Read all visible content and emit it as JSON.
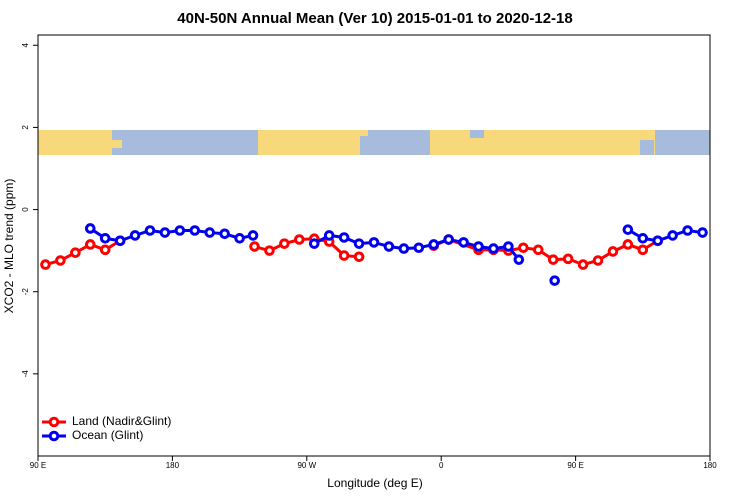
{
  "chart_data": {
    "type": "line",
    "title": "40N-50N Annual Mean (Ver 10)   2015-01-01 to 2020-12-18",
    "x_label": "Longitude (deg E)",
    "y_label": "XCO2 - MLO trend (ppm)",
    "xlim": [
      90,
      540
    ],
    "ylim": [
      -6,
      4.25
    ],
    "xticks": [
      {
        "value": 90,
        "label": "90 E"
      },
      180,
      {
        "value": 270,
        "label": "90 W"
      },
      0,
      {
        "value": 450,
        "label": "90 E"
      },
      {
        "value": 540,
        "label": "180"
      }
    ],
    "yticks": [
      4,
      2,
      0,
      -2,
      -4
    ],
    "legend": "bottom-left",
    "series": [
      {
        "name": "Land (Nadir&Glint)",
        "color": "#ff0000",
        "x": [
          95,
          105,
          115,
          125,
          135,
          145,
          null,
          235,
          245,
          255,
          265,
          275,
          285,
          295,
          305,
          null,
          355,
          365,
          385,
          395,
          405,
          415,
          425,
          435,
          445,
          455,
          465,
          475,
          485,
          495,
          505
        ],
        "values": [
          -1.34,
          -1.24,
          -1.05,
          -0.85,
          -0.98,
          -0.76,
          null,
          -0.9,
          -1.0,
          -0.83,
          -0.73,
          -0.71,
          -0.78,
          -1.12,
          -1.15,
          null,
          -0.88,
          -0.73,
          -0.98,
          -0.98,
          -1.0,
          -0.93,
          -0.98,
          -1.22,
          -1.2,
          -1.34,
          -1.24,
          -1.02,
          -0.85,
          -0.98,
          -0.76
        ]
      },
      {
        "name": "Ocean (Glint)",
        "color": "#0000ee",
        "x": [
          125,
          135,
          145,
          155,
          165,
          175,
          185,
          195,
          205,
          215,
          225,
          234,
          null,
          275,
          285,
          295,
          305,
          315,
          325,
          335,
          345,
          355,
          365,
          375,
          385,
          395,
          405,
          412,
          null,
          436,
          null,
          485,
          495,
          505,
          515,
          525,
          535
        ],
        "values": [
          -0.46,
          -0.7,
          -0.76,
          -0.63,
          -0.51,
          -0.56,
          -0.51,
          -0.51,
          -0.56,
          -0.59,
          -0.7,
          -0.63,
          null,
          -0.83,
          -0.63,
          -0.68,
          -0.83,
          -0.8,
          -0.9,
          -0.95,
          -0.93,
          -0.85,
          -0.73,
          -0.8,
          -0.9,
          -0.95,
          -0.9,
          -1.22,
          null,
          -1.73,
          null,
          -0.49,
          -0.7,
          -0.76,
          -0.63,
          -0.51,
          -0.56
        ]
      }
    ]
  }
}
